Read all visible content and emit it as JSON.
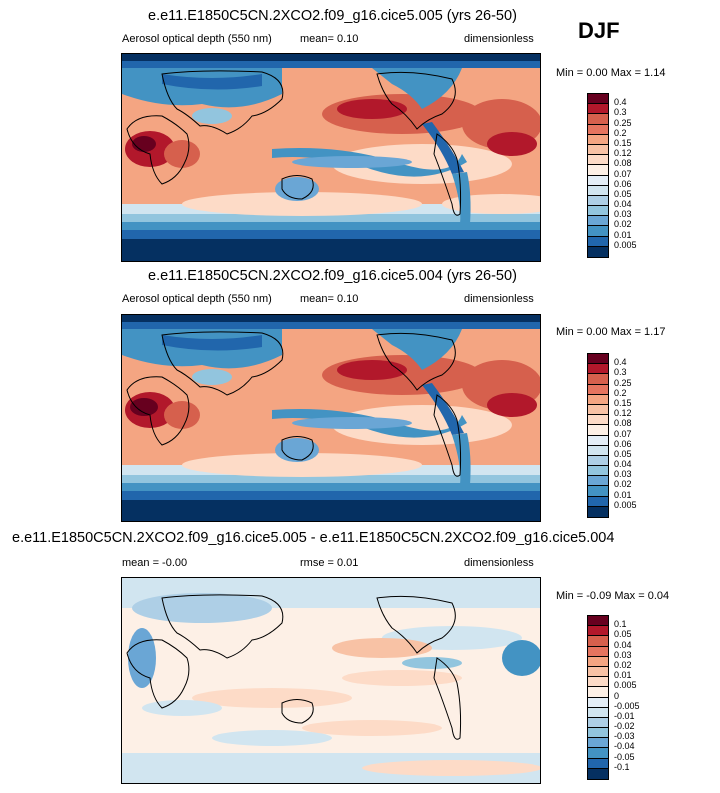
{
  "season": "DJF",
  "panels": [
    {
      "title": "e.e11.E1850C5CN.2XCO2.f09_g16.cice5.005 (yrs 26-50)",
      "variable": "Aerosol optical depth (550 nm)",
      "mean_text": "mean=   0.10",
      "units": "dimensionless",
      "minmax": "Min =   0.00 Max =   1.14",
      "levels": [
        "0.4",
        "0.3",
        "0.25",
        "0.2",
        "0.15",
        "0.12",
        "0.08",
        "0.07",
        "0.06",
        "0.05",
        "0.04",
        "0.03",
        "0.02",
        "0.01",
        "0.005"
      ]
    },
    {
      "title": "e.e11.E1850C5CN.2XCO2.f09_g16.cice5.004 (yrs 26-50)",
      "variable": "Aerosol optical depth (550 nm)",
      "mean_text": "mean=   0.10",
      "units": "dimensionless",
      "minmax": "Min =   0.00 Max =   1.17",
      "levels": [
        "0.4",
        "0.3",
        "0.25",
        "0.2",
        "0.15",
        "0.12",
        "0.08",
        "0.07",
        "0.06",
        "0.05",
        "0.04",
        "0.03",
        "0.02",
        "0.01",
        "0.005"
      ]
    },
    {
      "title": "e.e11.E1850C5CN.2XCO2.f09_g16.cice5.005 - e.e11.E1850C5CN.2XCO2.f09_g16.cice5.004",
      "mean_text": "mean =  -0.00",
      "rmse_text": "rmse =   0.01",
      "units": "dimensionless",
      "minmax": "Min =  -0.09 Max =   0.04",
      "levels": [
        "0.1",
        "0.05",
        "0.04",
        "0.03",
        "0.02",
        "0.01",
        "0.005",
        "0",
        "-0.005",
        "-0.01",
        "-0.02",
        "-0.03",
        "-0.04",
        "-0.05",
        "-0.1"
      ]
    }
  ],
  "colors": {
    "scale16": [
      "#67001f",
      "#b2182b",
      "#d6604d",
      "#e5745f",
      "#f4a582",
      "#f8c2a5",
      "#fddbc7",
      "#fdf0e6",
      "#e4eef7",
      "#d1e5f0",
      "#aecfe6",
      "#92c5de",
      "#6aa6d5",
      "#4393c3",
      "#2166ac",
      "#053061"
    ],
    "diff16": [
      "#67001f",
      "#b2182b",
      "#d6604d",
      "#e5745f",
      "#f4a582",
      "#f8c2a5",
      "#fddbc7",
      "#fdf0e6",
      "#e4eef7",
      "#d1e5f0",
      "#aecfe6",
      "#92c5de",
      "#6aa6d5",
      "#4393c3",
      "#2166ac",
      "#053061"
    ]
  }
}
